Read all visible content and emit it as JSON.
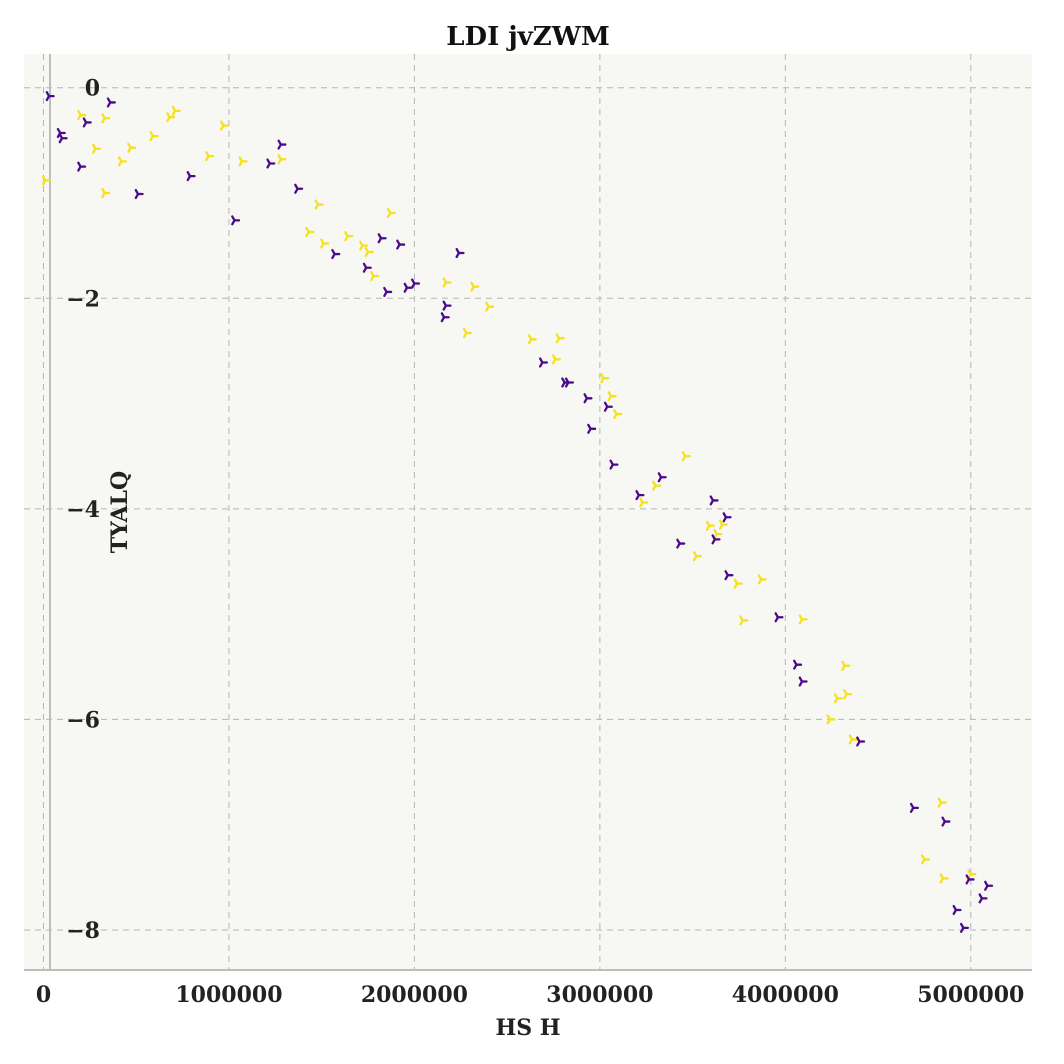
{
  "chart_data": {
    "type": "scatter",
    "title": "LDI jvZWM",
    "xlabel": "HS H",
    "ylabel": "TYALQ",
    "xlim": [
      -105000,
      5330000
    ],
    "ylim": [
      -8.38,
      0.32
    ],
    "x_ticks": [
      0,
      1000000,
      2000000,
      3000000,
      4000000,
      5000000
    ],
    "x_tick_labels": [
      "0",
      "1000000",
      "2000000",
      "3000000",
      "4000000",
      "5000000"
    ],
    "y_ticks": [
      0,
      -2,
      -4,
      -6,
      -8
    ],
    "y_tick_labels": [
      "0",
      "−2",
      "−4",
      "−6",
      "−8"
    ],
    "grid": true,
    "marker": "tri-right",
    "series": [
      {
        "color": "#f5e11c",
        "points": [
          [
            10000,
            -0.88
          ],
          [
            200000,
            -0.26
          ],
          [
            280000,
            -0.58
          ],
          [
            330000,
            -0.29
          ],
          [
            330000,
            -1.0
          ],
          [
            420000,
            -0.7
          ],
          [
            470000,
            -0.57
          ],
          [
            590000,
            -0.46
          ],
          [
            680000,
            -0.28
          ],
          [
            710000,
            -0.22
          ],
          [
            890000,
            -0.65
          ],
          [
            970000,
            -0.36
          ],
          [
            1070000,
            -0.7
          ],
          [
            1280000,
            -0.68
          ],
          [
            1430000,
            -1.37
          ],
          [
            1480000,
            -1.11
          ],
          [
            1510000,
            -1.48
          ],
          [
            1640000,
            -1.41
          ],
          [
            1720000,
            -1.5
          ],
          [
            1750000,
            -1.56
          ],
          [
            1780000,
            -1.79
          ],
          [
            1870000,
            -1.19
          ],
          [
            2170000,
            -1.85
          ],
          [
            2280000,
            -2.33
          ],
          [
            2320000,
            -1.89
          ],
          [
            2400000,
            -2.08
          ],
          [
            2630000,
            -2.39
          ],
          [
            2760000,
            -2.58
          ],
          [
            2780000,
            -2.38
          ],
          [
            3020000,
            -2.76
          ],
          [
            3060000,
            -2.93
          ],
          [
            3090000,
            -3.1
          ],
          [
            3230000,
            -3.94
          ],
          [
            3300000,
            -3.78
          ],
          [
            3460000,
            -3.5
          ],
          [
            3520000,
            -4.45
          ],
          [
            3590000,
            -4.16
          ],
          [
            3630000,
            -4.24
          ],
          [
            3660000,
            -4.15
          ],
          [
            3740000,
            -4.71
          ],
          [
            3770000,
            -5.06
          ],
          [
            3870000,
            -4.67
          ],
          [
            4090000,
            -5.05
          ],
          [
            4240000,
            -6.0
          ],
          [
            4280000,
            -5.8
          ],
          [
            4320000,
            -5.49
          ],
          [
            4330000,
            -5.76
          ],
          [
            4360000,
            -6.19
          ],
          [
            4750000,
            -7.33
          ],
          [
            4840000,
            -6.79
          ],
          [
            4850000,
            -7.51
          ],
          [
            5000000,
            -7.47
          ]
        ]
      },
      {
        "color": "#4b0a8a",
        "points": [
          [
            30000,
            -0.08
          ],
          [
            90000,
            -0.43
          ],
          [
            100000,
            -0.48
          ],
          [
            200000,
            -0.75
          ],
          [
            230000,
            -0.33
          ],
          [
            360000,
            -0.14
          ],
          [
            510000,
            -1.01
          ],
          [
            790000,
            -0.84
          ],
          [
            1030000,
            -1.26
          ],
          [
            1220000,
            -0.72
          ],
          [
            1280000,
            -0.54
          ],
          [
            1370000,
            -0.96
          ],
          [
            1570000,
            -1.58
          ],
          [
            1740000,
            -1.71
          ],
          [
            1820000,
            -1.43
          ],
          [
            1850000,
            -1.94
          ],
          [
            1920000,
            -1.49
          ],
          [
            1960000,
            -1.9
          ],
          [
            2000000,
            -1.86
          ],
          [
            2160000,
            -2.18
          ],
          [
            2170000,
            -2.07
          ],
          [
            2240000,
            -1.57
          ],
          [
            2690000,
            -2.61
          ],
          [
            2810000,
            -2.8
          ],
          [
            2830000,
            -2.8
          ],
          [
            2930000,
            -2.95
          ],
          [
            2950000,
            -3.24
          ],
          [
            3040000,
            -3.03
          ],
          [
            3070000,
            -3.58
          ],
          [
            3210000,
            -3.87
          ],
          [
            3330000,
            -3.7
          ],
          [
            3430000,
            -4.33
          ],
          [
            3610000,
            -3.92
          ],
          [
            3620000,
            -4.29
          ],
          [
            3680000,
            -4.08
          ],
          [
            3690000,
            -4.63
          ],
          [
            3960000,
            -5.03
          ],
          [
            4060000,
            -5.48
          ],
          [
            4090000,
            -5.64
          ],
          [
            4400000,
            -6.21
          ],
          [
            4690000,
            -6.84
          ],
          [
            4860000,
            -6.97
          ],
          [
            4920000,
            -7.81
          ],
          [
            4960000,
            -7.98
          ],
          [
            4990000,
            -7.52
          ],
          [
            5060000,
            -7.7
          ],
          [
            5090000,
            -7.58
          ]
        ]
      }
    ]
  }
}
